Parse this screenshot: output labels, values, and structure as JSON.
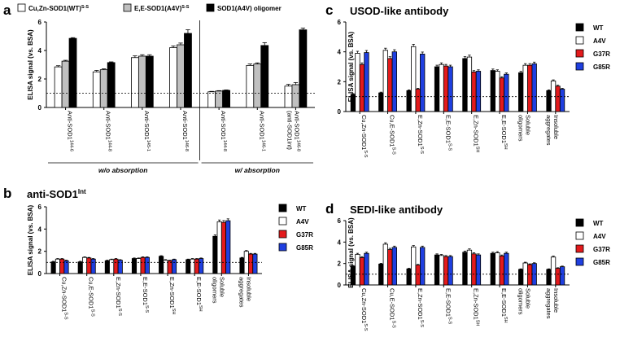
{
  "chart_data": [
    {
      "id": "a",
      "type": "bar",
      "panel_label": "a",
      "title": "",
      "ylabel": "ELISA signal (vs. BSA)",
      "ylim": [
        0,
        6
      ],
      "yticks": [
        0,
        2,
        4,
        6
      ],
      "reference_line": 1,
      "legend": [
        "Cu,Zn-SOD1(WT)S-S",
        "E,E-SOD1(A4V)S-S",
        "SOD1(A4V) oligomer"
      ],
      "series": [
        {
          "name": "Cu,Zn-SOD1(WT)S-S",
          "color": "#ffffff",
          "values": [
            2.85,
            2.5,
            3.5,
            4.2,
            1.1,
            2.95,
            1.5
          ]
        },
        {
          "name": "E,E-SOD1(A4V)S-S",
          "color": "#c0c0c0",
          "values": [
            3.25,
            2.65,
            3.6,
            4.4,
            1.15,
            3.05,
            1.6
          ]
        },
        {
          "name": "SOD1(A4V) oligomer",
          "color": "#000000",
          "values": [
            4.85,
            3.15,
            3.6,
            5.2,
            1.2,
            4.35,
            5.45
          ]
        }
      ],
      "errors": [
        [
          0.08,
          0.1,
          0.12,
          0.12,
          0.03,
          0.1,
          0.12
        ],
        [
          0.06,
          0.06,
          0.1,
          0.12,
          0.03,
          0.08,
          0.15
        ],
        [
          0.05,
          0.05,
          0.1,
          0.25,
          0.03,
          0.2,
          0.12
        ]
      ],
      "categories": [
        "Anti-SOD1144-6",
        "Anti-SOD1144-8",
        "Anti-SOD1145-1",
        "Anti-SOD1146-8",
        "Anti-SOD1144-8",
        "Anti-SOD1146-1",
        "Anti-SOD1146-8 (anti-SOD1int)"
      ],
      "group_labels": [
        {
          "text": "w/o absorption",
          "from": 0,
          "to": 3
        },
        {
          "text": "w/ absorption",
          "from": 4,
          "to": 6
        }
      ]
    },
    {
      "id": "b",
      "type": "bar",
      "panel_label": "b",
      "title": "anti-SOD1Int",
      "ylabel": "ELISA signal (vs. BSA)",
      "ylim": [
        0,
        6
      ],
      "yticks": [
        0,
        2,
        4,
        6
      ],
      "reference_line": 1,
      "legend": [
        "WT",
        "A4V",
        "G37R",
        "G85R"
      ],
      "series": [
        {
          "name": "WT",
          "color": "#000000",
          "values": [
            1.05,
            1.05,
            1.15,
            1.35,
            1.55,
            1.25,
            3.35,
            1.4
          ]
        },
        {
          "name": "A4V",
          "color": "#ffffff",
          "values": [
            1.3,
            1.45,
            1.25,
            1.35,
            1.2,
            1.3,
            4.65,
            2.0
          ]
        },
        {
          "name": "G37R",
          "color": "#e31a1c",
          "values": [
            1.3,
            1.4,
            1.3,
            1.45,
            1.15,
            1.3,
            4.6,
            1.75
          ]
        },
        {
          "name": "G85R",
          "color": "#1f3fe0",
          "values": [
            1.15,
            1.3,
            1.2,
            1.45,
            1.25,
            1.35,
            4.75,
            1.75
          ]
        }
      ],
      "categories": [
        "Cu,Zn-SOD1S-S",
        "Cu,E-SOD1S-S",
        "E,Zn-SOD1S-S",
        "E,E-SOD1S-S",
        "E,Zn-SOD1SH",
        "E,E-SOD1SH",
        "Soluble oligomers",
        "Insoluble aggregates"
      ]
    },
    {
      "id": "c",
      "type": "bar",
      "panel_label": "c",
      "title": "USOD-like antibody",
      "ylabel": "ELISA signal (vs. BSA)",
      "ylim": [
        0,
        6
      ],
      "yticks": [
        0,
        2,
        4,
        6
      ],
      "reference_line": 1,
      "legend": [
        "WT",
        "A4V",
        "G37R",
        "G85R"
      ],
      "series": [
        {
          "name": "WT",
          "color": "#000000",
          "values": [
            1.15,
            1.25,
            1.4,
            3.0,
            3.55,
            2.75,
            2.6,
            1.4
          ]
        },
        {
          "name": "A4V",
          "color": "#ffffff",
          "values": [
            3.9,
            4.1,
            4.35,
            3.15,
            3.65,
            2.7,
            3.1,
            2.05
          ]
        },
        {
          "name": "G37R",
          "color": "#e31a1c",
          "values": [
            3.15,
            3.55,
            1.5,
            3.05,
            2.65,
            2.25,
            3.1,
            1.7
          ]
        },
        {
          "name": "G85R",
          "color": "#1f3fe0",
          "values": [
            3.95,
            4.0,
            3.85,
            3.0,
            2.7,
            2.5,
            3.2,
            1.5
          ]
        }
      ],
      "categories": [
        "Cu,Zn-SOD1S-S",
        "Cu,E-SOD1S-S",
        "E,Zn-SOD1S-S",
        "E,E-SOD1S-S",
        "E,Zn-SOD1SH",
        "E,E-SOD1SH",
        "Soluble oligomers",
        "Insoluble aggregates"
      ]
    },
    {
      "id": "d",
      "type": "bar",
      "panel_label": "d",
      "title": "SEDI-like antibody",
      "ylabel": "ELISA signal (vs. BSA)",
      "ylim": [
        0,
        6
      ],
      "yticks": [
        0,
        2,
        4,
        6
      ],
      "reference_line": 1,
      "legend": [
        "WT",
        "A4V",
        "G37R",
        "G85R"
      ],
      "series": [
        {
          "name": "WT",
          "color": "#000000",
          "values": [
            1.75,
            1.95,
            1.5,
            2.8,
            3.05,
            2.95,
            1.45,
            1.45
          ]
        },
        {
          "name": "A4V",
          "color": "#ffffff",
          "values": [
            2.85,
            3.8,
            3.55,
            2.75,
            3.25,
            3.0,
            2.05,
            2.6
          ]
        },
        {
          "name": "G37R",
          "color": "#e31a1c",
          "values": [
            2.55,
            3.3,
            1.85,
            2.65,
            2.9,
            2.7,
            1.9,
            1.55
          ]
        },
        {
          "name": "G85R",
          "color": "#1f3fe0",
          "values": [
            2.95,
            3.5,
            3.5,
            2.65,
            2.8,
            2.95,
            2.0,
            1.7
          ]
        }
      ],
      "categories": [
        "Cu,Zn-SOD1S-S",
        "Cu,E-SOD1S-S",
        "E,Zn-SOD1S-S",
        "E,E-SOD1S-S",
        "E,Zn-SOD1SH",
        "E,E-SOD1SH",
        "Soluble oligomers",
        "Insoluble aggregates"
      ]
    }
  ]
}
